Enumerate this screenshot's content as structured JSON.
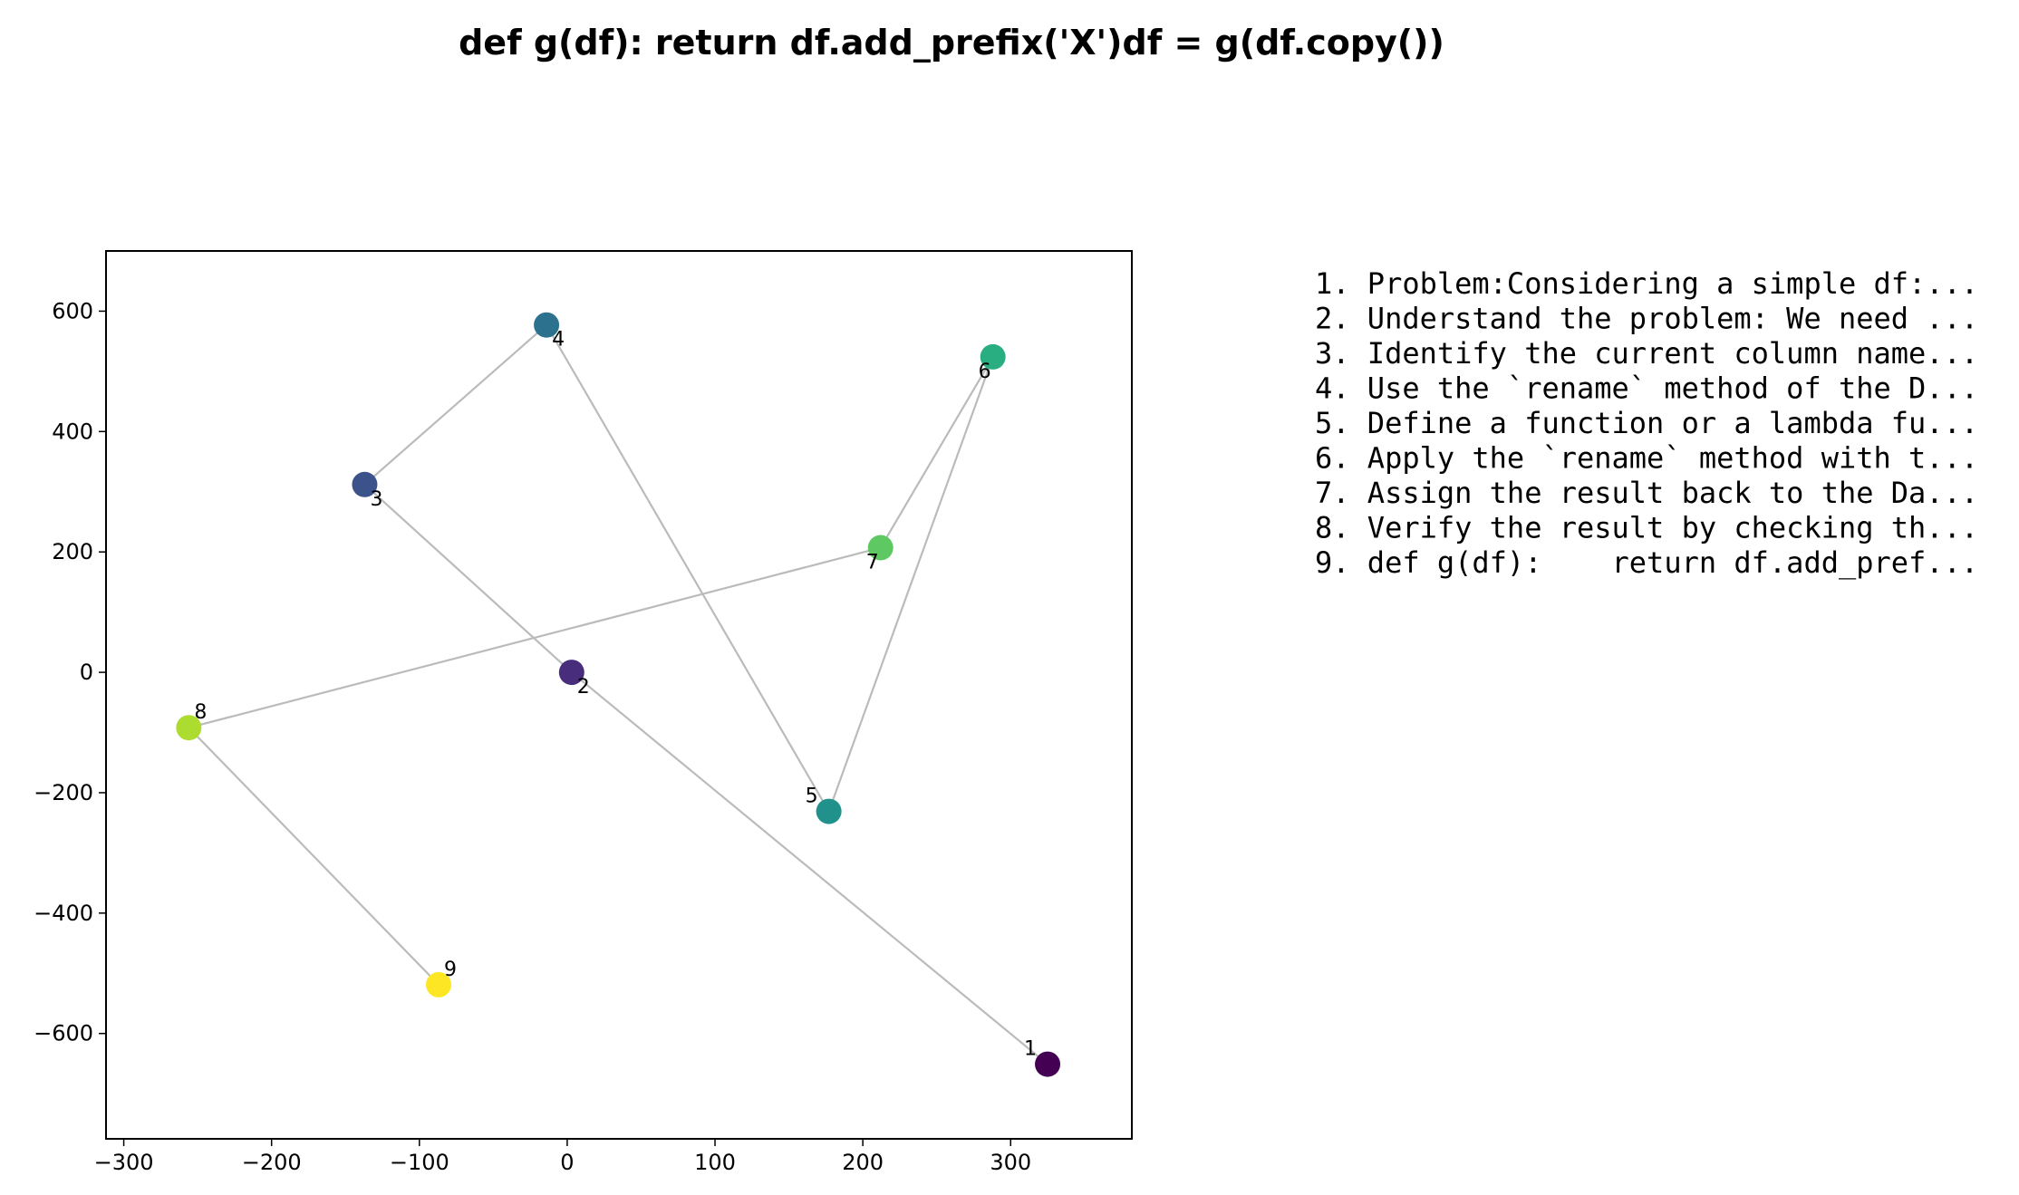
{
  "chart_data": {
    "type": "scatter",
    "title": "def g(df):    return df.add_prefix('X')df = g(df.copy())",
    "xlabel": "",
    "ylabel": "",
    "xlim": [
      -312,
      382
    ],
    "ylim": [
      -775,
      700
    ],
    "x_ticks": [
      -300,
      -200,
      -100,
      0,
      100,
      200,
      300
    ],
    "y_ticks": [
      -600,
      -400,
      -200,
      0,
      200,
      400,
      600
    ],
    "grid": false,
    "line_color": "#bbbbbb",
    "points": [
      {
        "label": "1",
        "x": 325,
        "y": -651,
        "color": "#440154",
        "label_pos": "top-left"
      },
      {
        "label": "2",
        "x": 3,
        "y": 0,
        "color": "#472d7b",
        "label_pos": "bottom-right"
      },
      {
        "label": "3",
        "x": -137,
        "y": 312,
        "color": "#3b528b",
        "label_pos": "bottom-right"
      },
      {
        "label": "4",
        "x": -14,
        "y": 577,
        "color": "#2c728e",
        "label_pos": "bottom-right"
      },
      {
        "label": "5",
        "x": 177,
        "y": -231,
        "color": "#21918c",
        "label_pos": "top-left"
      },
      {
        "label": "6",
        "x": 288,
        "y": 524,
        "color": "#28ae80",
        "label_pos": "bottom-left"
      },
      {
        "label": "7",
        "x": 212,
        "y": 207,
        "color": "#5ec962",
        "label_pos": "bottom-left"
      },
      {
        "label": "8",
        "x": -256,
        "y": -92,
        "color": "#addc30",
        "label_pos": "top-right"
      },
      {
        "label": "9",
        "x": -87,
        "y": -519,
        "color": "#fde725",
        "label_pos": "top-right"
      }
    ],
    "path_order": [
      "1",
      "2",
      "3",
      "4",
      "5",
      "6",
      "7",
      "8",
      "9"
    ]
  },
  "steps": [
    "1. Problem:Considering a simple df:...",
    "2. Understand the problem: We need ...",
    "3. Identify the current column name...",
    "4. Use the `rename` method of the D...",
    "5. Define a function or a lambda fu...",
    "6. Apply the `rename` method with t...",
    "7. Assign the result back to the Da...",
    "8. Verify the result by checking th...",
    "9. def g(df):    return df.add_pref..."
  ]
}
